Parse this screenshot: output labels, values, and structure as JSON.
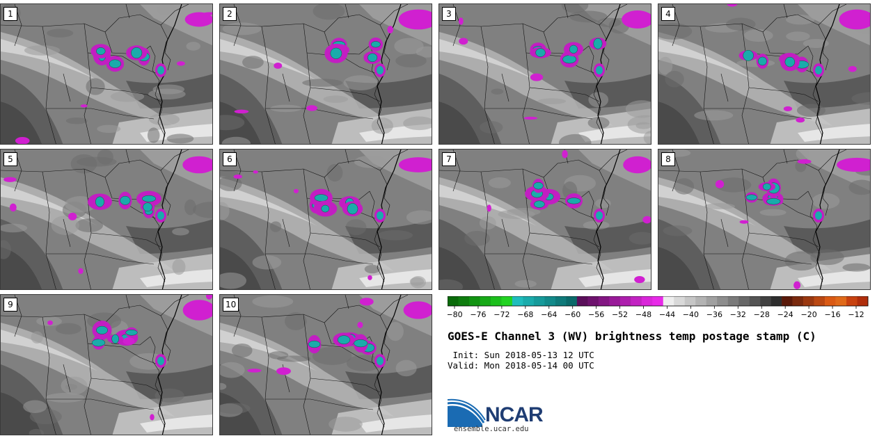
{
  "panels": [
    {
      "label": "1",
      "seed": 11
    },
    {
      "label": "2",
      "seed": 23
    },
    {
      "label": "3",
      "seed": 37
    },
    {
      "label": "4",
      "seed": 41
    },
    {
      "label": "5",
      "seed": 53
    },
    {
      "label": "6",
      "seed": 67
    },
    {
      "label": "7",
      "seed": 71
    },
    {
      "label": "8",
      "seed": 83
    },
    {
      "label": "9",
      "seed": 97
    },
    {
      "label": "10",
      "seed": 109
    }
  ],
  "colorbar": {
    "ticks": [
      "−80",
      "−76",
      "−72",
      "−68",
      "−64",
      "−60",
      "−56",
      "−52",
      "−48",
      "−44",
      "−40",
      "−36",
      "−32",
      "−28",
      "−24",
      "−20",
      "−16",
      "−12"
    ],
    "colors": [
      "#0a6b0a",
      "#0f7d0f",
      "#129312",
      "#17a917",
      "#1cbf1c",
      "#22d322",
      "#1fbdbd",
      "#1aabab",
      "#169a9a",
      "#128a8a",
      "#0f7a7a",
      "#0b6a6a",
      "#5a0f5a",
      "#6d126d",
      "#821682",
      "#981a98",
      "#ad1ead",
      "#c222c2",
      "#d926d9",
      "#e82ae8",
      "#eeeeee",
      "#d9d9d9",
      "#c6c6c6",
      "#b3b3b3",
      "#a0a0a0",
      "#8d8d8d",
      "#7a7a7a",
      "#676767",
      "#545454",
      "#414141",
      "#2e2e2e",
      "#5a1a0a",
      "#7a2a0e",
      "#9a3810",
      "#ba4812",
      "#da5a14",
      "#e06a1a",
      "#c84210",
      "#b02e0c"
    ]
  },
  "title": "GOES-E Channel 3 (WV) brightness temp postage stamp (C)",
  "init": " Init: Sun 2018-05-13 12 UTC",
  "valid": "Valid: Mon 2018-05-14 00 UTC",
  "logo": {
    "text": "NCAR",
    "site": "ensemble.ucar.edu",
    "brand_color": "#1f3d73",
    "arc_color": "#1a6bb3"
  }
}
